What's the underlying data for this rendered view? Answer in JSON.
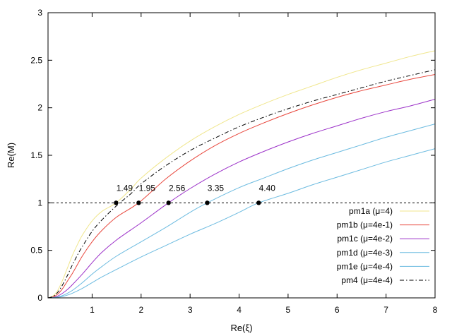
{
  "chart_data": {
    "type": "line",
    "title": "",
    "xlabel": "Re(ξ)",
    "ylabel": "Re(M)",
    "xlim": [
      0.1,
      8
    ],
    "ylim": [
      0,
      3
    ],
    "xticks": [
      1,
      2,
      3,
      4,
      5,
      6,
      7,
      8
    ],
    "yticks": [
      0,
      0.5,
      1,
      1.5,
      2,
      2.5,
      3
    ],
    "xtick_labels": [
      "1",
      "2",
      "3",
      "4",
      "5",
      "6",
      "7",
      "8"
    ],
    "ytick_labels": [
      "0",
      "0.5",
      "1",
      "1.5",
      "2",
      "2.5",
      "3"
    ],
    "grid": false,
    "legend_position": "bottom-right",
    "series": [
      {
        "name": "pm1a (μ=4)",
        "color": "#f0e68c",
        "dash": "solid",
        "x": [
          0.1,
          0.2,
          0.3,
          0.4,
          0.5,
          0.6,
          0.7,
          0.8,
          1.0,
          1.2,
          1.49,
          1.8,
          2.0,
          2.5,
          3.0,
          3.5,
          4.0,
          4.5,
          5.0,
          5.5,
          6.0,
          6.5,
          7.0,
          7.5,
          8.0
        ],
        "y": [
          0.0,
          0.02,
          0.08,
          0.19,
          0.32,
          0.45,
          0.56,
          0.66,
          0.81,
          0.91,
          1.0,
          1.15,
          1.26,
          1.47,
          1.65,
          1.8,
          1.93,
          2.04,
          2.14,
          2.23,
          2.32,
          2.4,
          2.47,
          2.54,
          2.6
        ]
      },
      {
        "name": "pm1b (μ=4e-1)",
        "color": "#e8463c",
        "dash": "solid",
        "x": [
          0.1,
          0.2,
          0.3,
          0.4,
          0.5,
          0.6,
          0.7,
          0.8,
          1.0,
          1.2,
          1.5,
          1.95,
          2.5,
          3.0,
          3.5,
          4.0,
          4.5,
          5.0,
          5.5,
          6.0,
          6.5,
          7.0,
          7.5,
          8.0
        ],
        "y": [
          0.0,
          0.01,
          0.04,
          0.1,
          0.18,
          0.26,
          0.35,
          0.44,
          0.59,
          0.71,
          0.85,
          1.0,
          1.25,
          1.44,
          1.6,
          1.73,
          1.84,
          1.94,
          2.03,
          2.11,
          2.18,
          2.24,
          2.3,
          2.35
        ]
      },
      {
        "name": "pm1c (μ=4e-2)",
        "color": "#9b30c8",
        "dash": "solid",
        "x": [
          0.1,
          0.2,
          0.3,
          0.4,
          0.5,
          0.6,
          0.8,
          1.0,
          1.2,
          1.5,
          2.0,
          2.56,
          3.0,
          3.5,
          4.0,
          4.5,
          5.0,
          5.5,
          6.0,
          6.5,
          7.0,
          7.5,
          8.0
        ],
        "y": [
          0.0,
          0.005,
          0.02,
          0.05,
          0.09,
          0.14,
          0.25,
          0.37,
          0.48,
          0.61,
          0.79,
          1.0,
          1.15,
          1.3,
          1.43,
          1.54,
          1.64,
          1.73,
          1.81,
          1.89,
          1.96,
          2.02,
          2.09
        ]
      },
      {
        "name": "pm1d (μ=4e-3)",
        "color": "#6cbbe0",
        "dash": "solid",
        "x": [
          0.1,
          0.2,
          0.3,
          0.4,
          0.5,
          0.6,
          0.8,
          1.0,
          1.2,
          1.5,
          2.0,
          2.5,
          3.0,
          3.35,
          4.0,
          4.5,
          5.0,
          5.5,
          6.0,
          6.5,
          7.0,
          7.5,
          8.0
        ],
        "y": [
          0.0,
          0.003,
          0.01,
          0.025,
          0.05,
          0.08,
          0.16,
          0.25,
          0.33,
          0.44,
          0.59,
          0.74,
          0.9,
          1.0,
          1.16,
          1.26,
          1.36,
          1.45,
          1.53,
          1.61,
          1.69,
          1.76,
          1.83
        ]
      },
      {
        "name": "pm1e (μ=4e-4)",
        "color": "#6cbbe0",
        "dash": "solid",
        "x": [
          0.1,
          0.2,
          0.3,
          0.4,
          0.5,
          0.6,
          0.8,
          1.0,
          1.2,
          1.5,
          2.0,
          2.5,
          3.0,
          3.5,
          4.0,
          4.4,
          5.0,
          5.5,
          6.0,
          6.5,
          7.0,
          7.5,
          8.0
        ],
        "y": [
          0.0,
          0.002,
          0.006,
          0.015,
          0.03,
          0.05,
          0.1,
          0.16,
          0.22,
          0.3,
          0.43,
          0.55,
          0.67,
          0.78,
          0.9,
          1.0,
          1.1,
          1.19,
          1.27,
          1.35,
          1.43,
          1.5,
          1.57
        ]
      },
      {
        "name": "pm4 (μ=4e-4)",
        "color": "#000000",
        "dash": "dashdot",
        "x": [
          0.1,
          0.2,
          0.3,
          0.4,
          0.5,
          0.6,
          0.7,
          0.8,
          1.0,
          1.2,
          1.5,
          1.8,
          2.0,
          2.5,
          3.0,
          3.5,
          4.0,
          4.5,
          5.0,
          5.5,
          6.0,
          6.5,
          7.0,
          7.5,
          8.0
        ],
        "y": [
          0.0,
          0.015,
          0.06,
          0.14,
          0.24,
          0.35,
          0.45,
          0.54,
          0.7,
          0.82,
          0.97,
          1.1,
          1.2,
          1.39,
          1.55,
          1.68,
          1.8,
          1.9,
          1.99,
          2.07,
          2.14,
          2.21,
          2.28,
          2.34,
          2.4
        ]
      }
    ],
    "reference_line": {
      "y": 1,
      "style": "dashed",
      "color": "#000000"
    },
    "markers": [
      {
        "x": 1.49,
        "y": 1,
        "label": "1.49"
      },
      {
        "x": 1.95,
        "y": 1,
        "label": "1.95"
      },
      {
        "x": 2.56,
        "y": 1,
        "label": "2.56"
      },
      {
        "x": 3.35,
        "y": 1,
        "label": "3.35"
      },
      {
        "x": 4.4,
        "y": 1,
        "label": "4.40"
      }
    ]
  }
}
